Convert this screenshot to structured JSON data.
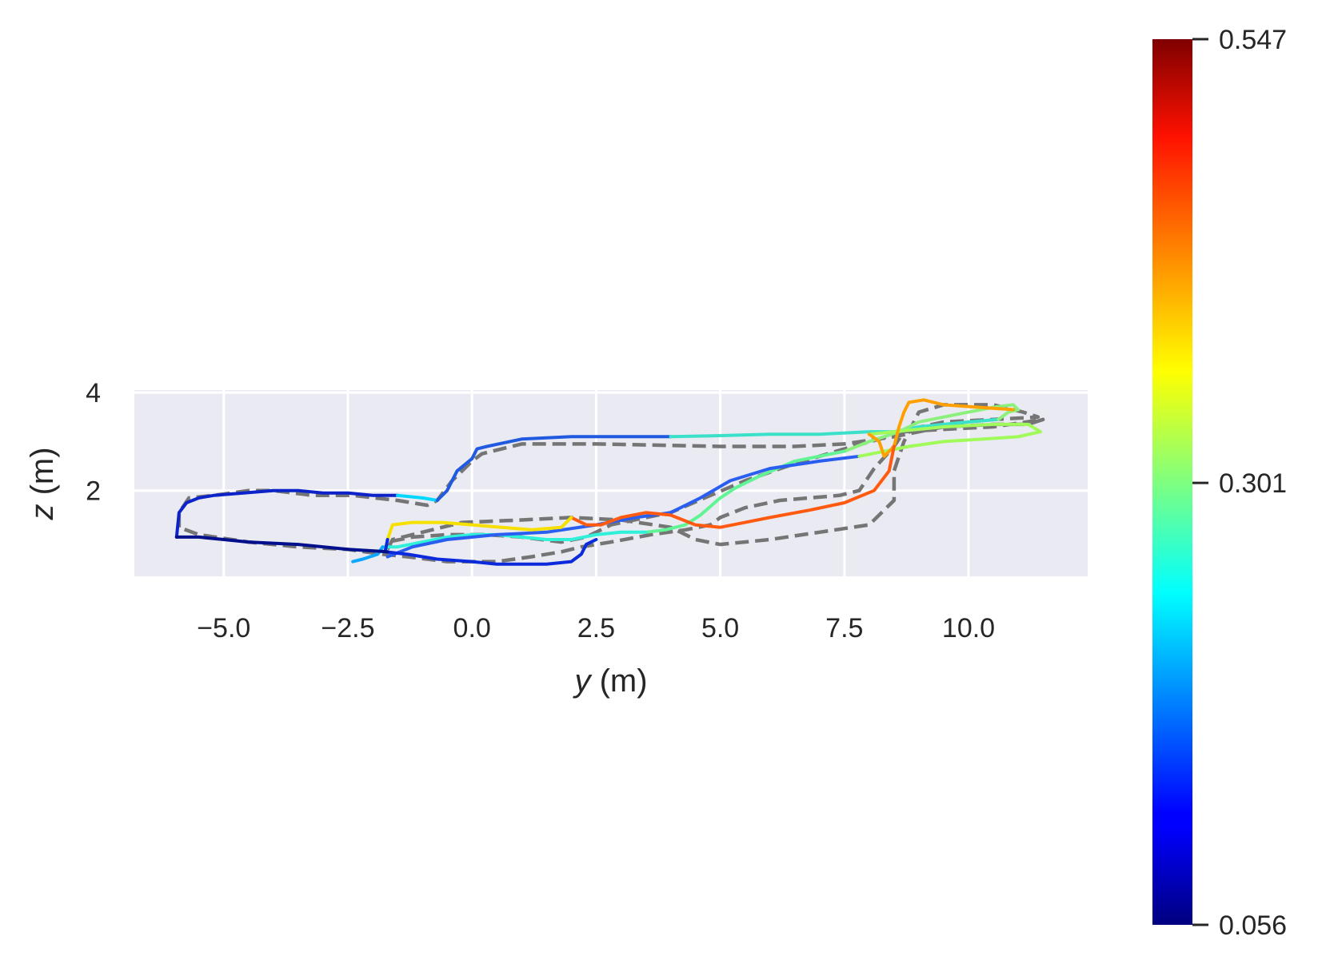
{
  "chart_data": {
    "type": "line",
    "xlabel_var": "y",
    "xlabel_unit": " (m)",
    "ylabel_var": "z",
    "ylabel_unit": " (m)",
    "xlim": [
      -6.8,
      12.4
    ],
    "ylim": [
      0.25,
      4.05
    ],
    "xticks": [
      -5.0,
      -2.5,
      0.0,
      2.5,
      5.0,
      7.5,
      10.0
    ],
    "xtick_labels": [
      "−5.0",
      "−2.5",
      "0.0",
      "2.5",
      "5.0",
      "7.5",
      "10.0"
    ],
    "yticks": [
      2,
      4
    ],
    "ytick_labels": [
      "2",
      "4"
    ],
    "grid": true,
    "background": "#eaeaf2",
    "colormap": "jet",
    "colorbar": {
      "min": 0.056,
      "max": 0.547,
      "ticks": [
        0.056,
        0.301,
        0.547
      ],
      "tick_labels": [
        "0.056",
        "0.301",
        "0.547"
      ]
    },
    "series": [
      {
        "style": "dashed",
        "color": "#757575",
        "points": [
          [
            -5.9,
            1.25
          ],
          [
            -5.9,
            1.55
          ],
          [
            -5.7,
            1.85
          ],
          [
            -5.2,
            1.9
          ],
          [
            -4.5,
            2.0
          ],
          [
            -4.0,
            2.0
          ],
          [
            -3.2,
            1.9
          ],
          [
            -2.4,
            1.9
          ],
          [
            -1.5,
            1.8
          ],
          [
            -0.9,
            1.7
          ],
          [
            -0.7,
            1.8
          ],
          [
            -0.4,
            2.2
          ],
          [
            0.0,
            2.6
          ],
          [
            0.2,
            2.75
          ],
          [
            1.0,
            2.95
          ],
          [
            2.5,
            2.95
          ],
          [
            5.0,
            2.9
          ],
          [
            6.5,
            2.9
          ],
          [
            7.5,
            2.95
          ],
          [
            8.5,
            3.1
          ],
          [
            9.5,
            3.3
          ],
          [
            10.5,
            3.35
          ],
          [
            11.2,
            3.35
          ],
          [
            11.5,
            3.45
          ],
          [
            10.5,
            3.3
          ],
          [
            9.5,
            3.25
          ],
          [
            8.7,
            3.2
          ],
          [
            8.5,
            2.9
          ],
          [
            8.1,
            2.45
          ],
          [
            7.8,
            2.0
          ],
          [
            7.4,
            1.9
          ],
          [
            6.8,
            1.85
          ],
          [
            6.2,
            1.8
          ],
          [
            5.5,
            1.65
          ],
          [
            5.0,
            1.45
          ],
          [
            4.8,
            1.3
          ],
          [
            4.3,
            1.2
          ],
          [
            3.6,
            1.1
          ],
          [
            2.8,
            0.95
          ],
          [
            2.2,
            0.85
          ],
          [
            1.8,
            0.75
          ],
          [
            1.2,
            0.65
          ],
          [
            0.5,
            0.55
          ],
          [
            -0.5,
            0.55
          ],
          [
            -1.3,
            0.65
          ],
          [
            -1.8,
            0.7
          ],
          [
            -2.5,
            0.8
          ],
          [
            -3.5,
            0.85
          ],
          [
            -4.5,
            0.95
          ],
          [
            -5.5,
            1.1
          ],
          [
            -5.9,
            1.25
          ]
        ]
      },
      {
        "style": "dashed",
        "color": "#757575",
        "points": [
          [
            -1.7,
            0.8
          ],
          [
            -1.6,
            1.0
          ],
          [
            -1.0,
            1.15
          ],
          [
            -0.2,
            1.35
          ],
          [
            1.0,
            1.4
          ],
          [
            2.0,
            1.45
          ],
          [
            3.0,
            1.4
          ],
          [
            4.0,
            1.25
          ],
          [
            4.5,
            1.0
          ],
          [
            5.0,
            0.9
          ],
          [
            6.0,
            1.0
          ],
          [
            7.0,
            1.15
          ],
          [
            8.0,
            1.3
          ],
          [
            8.5,
            1.8
          ],
          [
            8.5,
            2.4
          ],
          [
            8.7,
            3.0
          ],
          [
            9.0,
            3.6
          ],
          [
            9.5,
            3.75
          ],
          [
            10.5,
            3.75
          ],
          [
            11.1,
            3.6
          ],
          [
            11.4,
            3.5
          ],
          [
            10.5,
            3.45
          ],
          [
            9.5,
            3.4
          ],
          [
            8.8,
            3.25
          ],
          [
            8.2,
            3.05
          ],
          [
            7.5,
            2.85
          ],
          [
            6.5,
            2.55
          ],
          [
            5.5,
            2.2
          ],
          [
            4.8,
            1.9
          ],
          [
            4.0,
            1.55
          ],
          [
            3.5,
            1.45
          ],
          [
            2.8,
            1.3
          ],
          [
            2.3,
            1.05
          ],
          [
            1.8,
            0.95
          ],
          [
            1.0,
            1.05
          ],
          [
            0.3,
            1.1
          ],
          [
            -0.5,
            1.1
          ],
          [
            -1.2,
            1.05
          ],
          [
            -1.7,
            0.95
          ]
        ]
      },
      {
        "style": "solid",
        "color": "#0b23c8",
        "points": [
          [
            -5.95,
            1.05
          ],
          [
            -5.9,
            1.55
          ],
          [
            -5.75,
            1.75
          ],
          [
            -5.5,
            1.85
          ],
          [
            -5.2,
            1.9
          ],
          [
            -4.6,
            1.95
          ],
          [
            -4.0,
            2.0
          ],
          [
            -3.5,
            2.0
          ],
          [
            -3.0,
            1.95
          ],
          [
            -2.5,
            1.95
          ],
          [
            -2.0,
            1.9
          ],
          [
            -1.5,
            1.9
          ]
        ]
      },
      {
        "style": "solid",
        "color": "#00d8ff",
        "points": [
          [
            -1.5,
            1.9
          ],
          [
            -1.0,
            1.85
          ],
          [
            -0.7,
            1.8
          ]
        ]
      },
      {
        "style": "solid",
        "color": "#1f5ae0",
        "points": [
          [
            -0.7,
            1.8
          ],
          [
            -0.5,
            2.0
          ],
          [
            -0.3,
            2.4
          ],
          [
            0.0,
            2.65
          ],
          [
            0.1,
            2.85
          ],
          [
            0.3,
            2.9
          ],
          [
            1.0,
            3.05
          ],
          [
            2.0,
            3.1
          ],
          [
            3.0,
            3.1
          ],
          [
            4.0,
            3.1
          ]
        ]
      },
      {
        "style": "solid",
        "color": "#3be0c8",
        "points": [
          [
            4.0,
            3.1
          ],
          [
            5.0,
            3.12
          ],
          [
            6.0,
            3.15
          ],
          [
            7.0,
            3.15
          ],
          [
            8.0,
            3.2
          ],
          [
            8.5,
            3.2
          ],
          [
            9.0,
            3.3
          ],
          [
            9.5,
            3.35
          ],
          [
            10.0,
            3.4
          ],
          [
            10.6,
            3.45
          ]
        ]
      },
      {
        "style": "solid",
        "color": "#8cf07c",
        "points": [
          [
            10.6,
            3.45
          ],
          [
            10.8,
            3.6
          ],
          [
            11.0,
            3.65
          ],
          [
            10.9,
            3.75
          ],
          [
            10.5,
            3.7
          ],
          [
            10.0,
            3.6
          ],
          [
            9.5,
            3.5
          ],
          [
            9.0,
            3.4
          ],
          [
            8.6,
            3.2
          ],
          [
            8.3,
            3.1
          ],
          [
            8.0,
            3.0
          ],
          [
            7.5,
            2.8
          ]
        ]
      },
      {
        "style": "solid",
        "color": "#60f494",
        "points": [
          [
            7.5,
            2.8
          ],
          [
            6.5,
            2.6
          ],
          [
            5.8,
            2.3
          ],
          [
            5.3,
            2.05
          ],
          [
            5.0,
            1.85
          ],
          [
            4.6,
            1.5
          ],
          [
            4.3,
            1.3
          ],
          [
            3.9,
            1.2
          ],
          [
            3.5,
            1.15
          ]
        ]
      },
      {
        "style": "solid",
        "color": "#2ff0d8",
        "points": [
          [
            3.5,
            1.15
          ],
          [
            3.0,
            1.15
          ],
          [
            2.5,
            1.1
          ],
          [
            2.0,
            1.0
          ],
          [
            1.5,
            1.0
          ],
          [
            1.0,
            1.05
          ],
          [
            0.5,
            1.1
          ],
          [
            0.0,
            1.1
          ],
          [
            -0.5,
            1.05
          ],
          [
            -1.0,
            0.95
          ],
          [
            -1.5,
            0.85
          ],
          [
            -1.8,
            0.85
          ]
        ]
      },
      {
        "style": "solid",
        "color": "#0aa8ff",
        "points": [
          [
            -1.8,
            0.85
          ],
          [
            -1.9,
            0.7
          ],
          [
            -2.2,
            0.6
          ],
          [
            -2.4,
            0.55
          ]
        ]
      },
      {
        "style": "solid",
        "color": "#2a5ef0",
        "points": [
          [
            -1.7,
            0.65
          ],
          [
            -1.2,
            0.85
          ],
          [
            -0.5,
            1.0
          ],
          [
            0.5,
            1.1
          ],
          [
            1.5,
            1.15
          ],
          [
            2.5,
            1.3
          ],
          [
            3.3,
            1.45
          ],
          [
            4.0,
            1.55
          ],
          [
            4.6,
            1.85
          ],
          [
            5.2,
            2.2
          ],
          [
            6.0,
            2.45
          ],
          [
            7.0,
            2.6
          ],
          [
            7.8,
            2.7
          ]
        ]
      },
      {
        "style": "solid",
        "color": "#a0fa5a",
        "points": [
          [
            7.8,
            2.7
          ],
          [
            8.3,
            2.8
          ],
          [
            8.8,
            2.9
          ],
          [
            9.5,
            3.0
          ],
          [
            10.3,
            3.05
          ],
          [
            11.0,
            3.1
          ],
          [
            11.45,
            3.2
          ],
          [
            11.2,
            3.35
          ],
          [
            10.5,
            3.35
          ],
          [
            9.5,
            3.3
          ],
          [
            8.5,
            3.2
          ],
          [
            8.0,
            3.15
          ]
        ]
      },
      {
        "style": "solid",
        "color": "#ffa000",
        "points": [
          [
            8.0,
            3.15
          ],
          [
            8.2,
            3.0
          ],
          [
            8.3,
            2.7
          ],
          [
            8.5,
            2.9
          ],
          [
            8.6,
            3.3
          ],
          [
            8.7,
            3.6
          ],
          [
            8.8,
            3.8
          ],
          [
            9.1,
            3.85
          ],
          [
            9.5,
            3.75
          ],
          [
            10.2,
            3.7
          ],
          [
            10.9,
            3.65
          ]
        ]
      },
      {
        "style": "solid",
        "color": "#ff5a10",
        "points": [
          [
            8.5,
            2.9
          ],
          [
            8.4,
            2.4
          ],
          [
            8.1,
            2.0
          ],
          [
            7.5,
            1.75
          ],
          [
            6.8,
            1.6
          ],
          [
            6.0,
            1.45
          ],
          [
            5.5,
            1.35
          ],
          [
            5.0,
            1.25
          ],
          [
            4.5,
            1.3
          ],
          [
            4.0,
            1.5
          ],
          [
            3.5,
            1.55
          ],
          [
            3.0,
            1.45
          ],
          [
            2.6,
            1.3
          ],
          [
            2.3,
            1.3
          ],
          [
            2.0,
            1.45
          ]
        ]
      },
      {
        "style": "solid",
        "color": "#f5e000",
        "points": [
          [
            2.0,
            1.45
          ],
          [
            1.8,
            1.25
          ],
          [
            1.2,
            1.2
          ],
          [
            0.6,
            1.25
          ],
          [
            0.0,
            1.3
          ],
          [
            -0.6,
            1.35
          ],
          [
            -1.2,
            1.35
          ],
          [
            -1.6,
            1.3
          ],
          [
            -1.7,
            1.0
          ]
        ]
      },
      {
        "style": "solid",
        "color": "#0a2adc",
        "points": [
          [
            -1.7,
            1.0
          ],
          [
            -1.75,
            0.75
          ],
          [
            -1.3,
            0.7
          ],
          [
            -0.7,
            0.6
          ],
          [
            0.0,
            0.55
          ],
          [
            0.5,
            0.5
          ],
          [
            1.0,
            0.5
          ],
          [
            1.5,
            0.5
          ],
          [
            2.0,
            0.55
          ],
          [
            2.2,
            0.7
          ],
          [
            2.3,
            0.9
          ],
          [
            2.5,
            1.0
          ]
        ]
      },
      {
        "style": "solid",
        "color": "#00108c",
        "points": [
          [
            -5.95,
            1.05
          ],
          [
            -5.5,
            1.05
          ],
          [
            -5.0,
            1.0
          ],
          [
            -4.5,
            0.95
          ],
          [
            -3.5,
            0.9
          ],
          [
            -2.5,
            0.8
          ],
          [
            -1.7,
            0.75
          ]
        ]
      }
    ]
  }
}
